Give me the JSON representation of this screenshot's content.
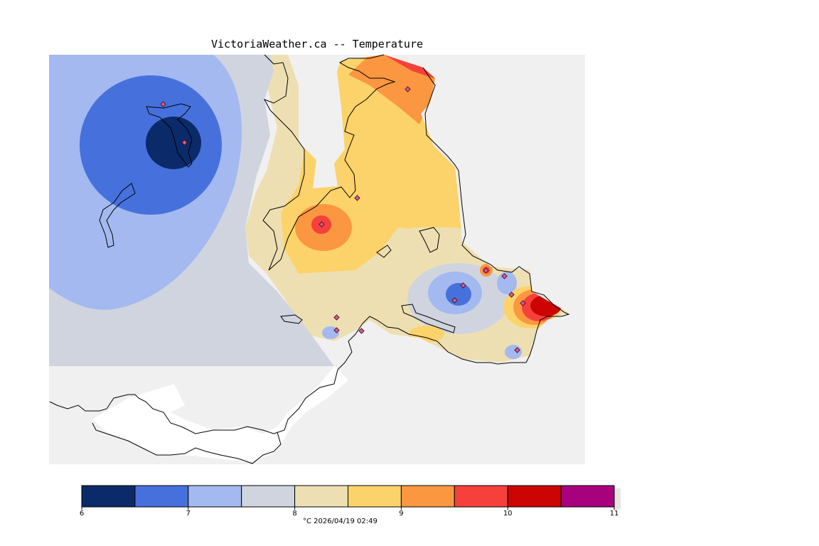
{
  "title": "VictoriaWeather.ca -- Temperature",
  "legend": {
    "colors": [
      "#0b2a69",
      "#4671dc",
      "#a3b9f0",
      "#d0d4df",
      "#eedfb2",
      "#fcd36a",
      "#fb9741",
      "#f6403c",
      "#cc0404",
      "#a8017e"
    ],
    "ticks": [
      "6",
      "7",
      "8",
      "9",
      "10",
      "11"
    ],
    "unit": "°C",
    "timestamp": "2026/04/19 02:49"
  },
  "map_colors": {
    "sea": "#f0f0f0",
    "land_blank": "#ffffff",
    "coastline": "#000000",
    "station_fill": "#cc6688"
  }
}
